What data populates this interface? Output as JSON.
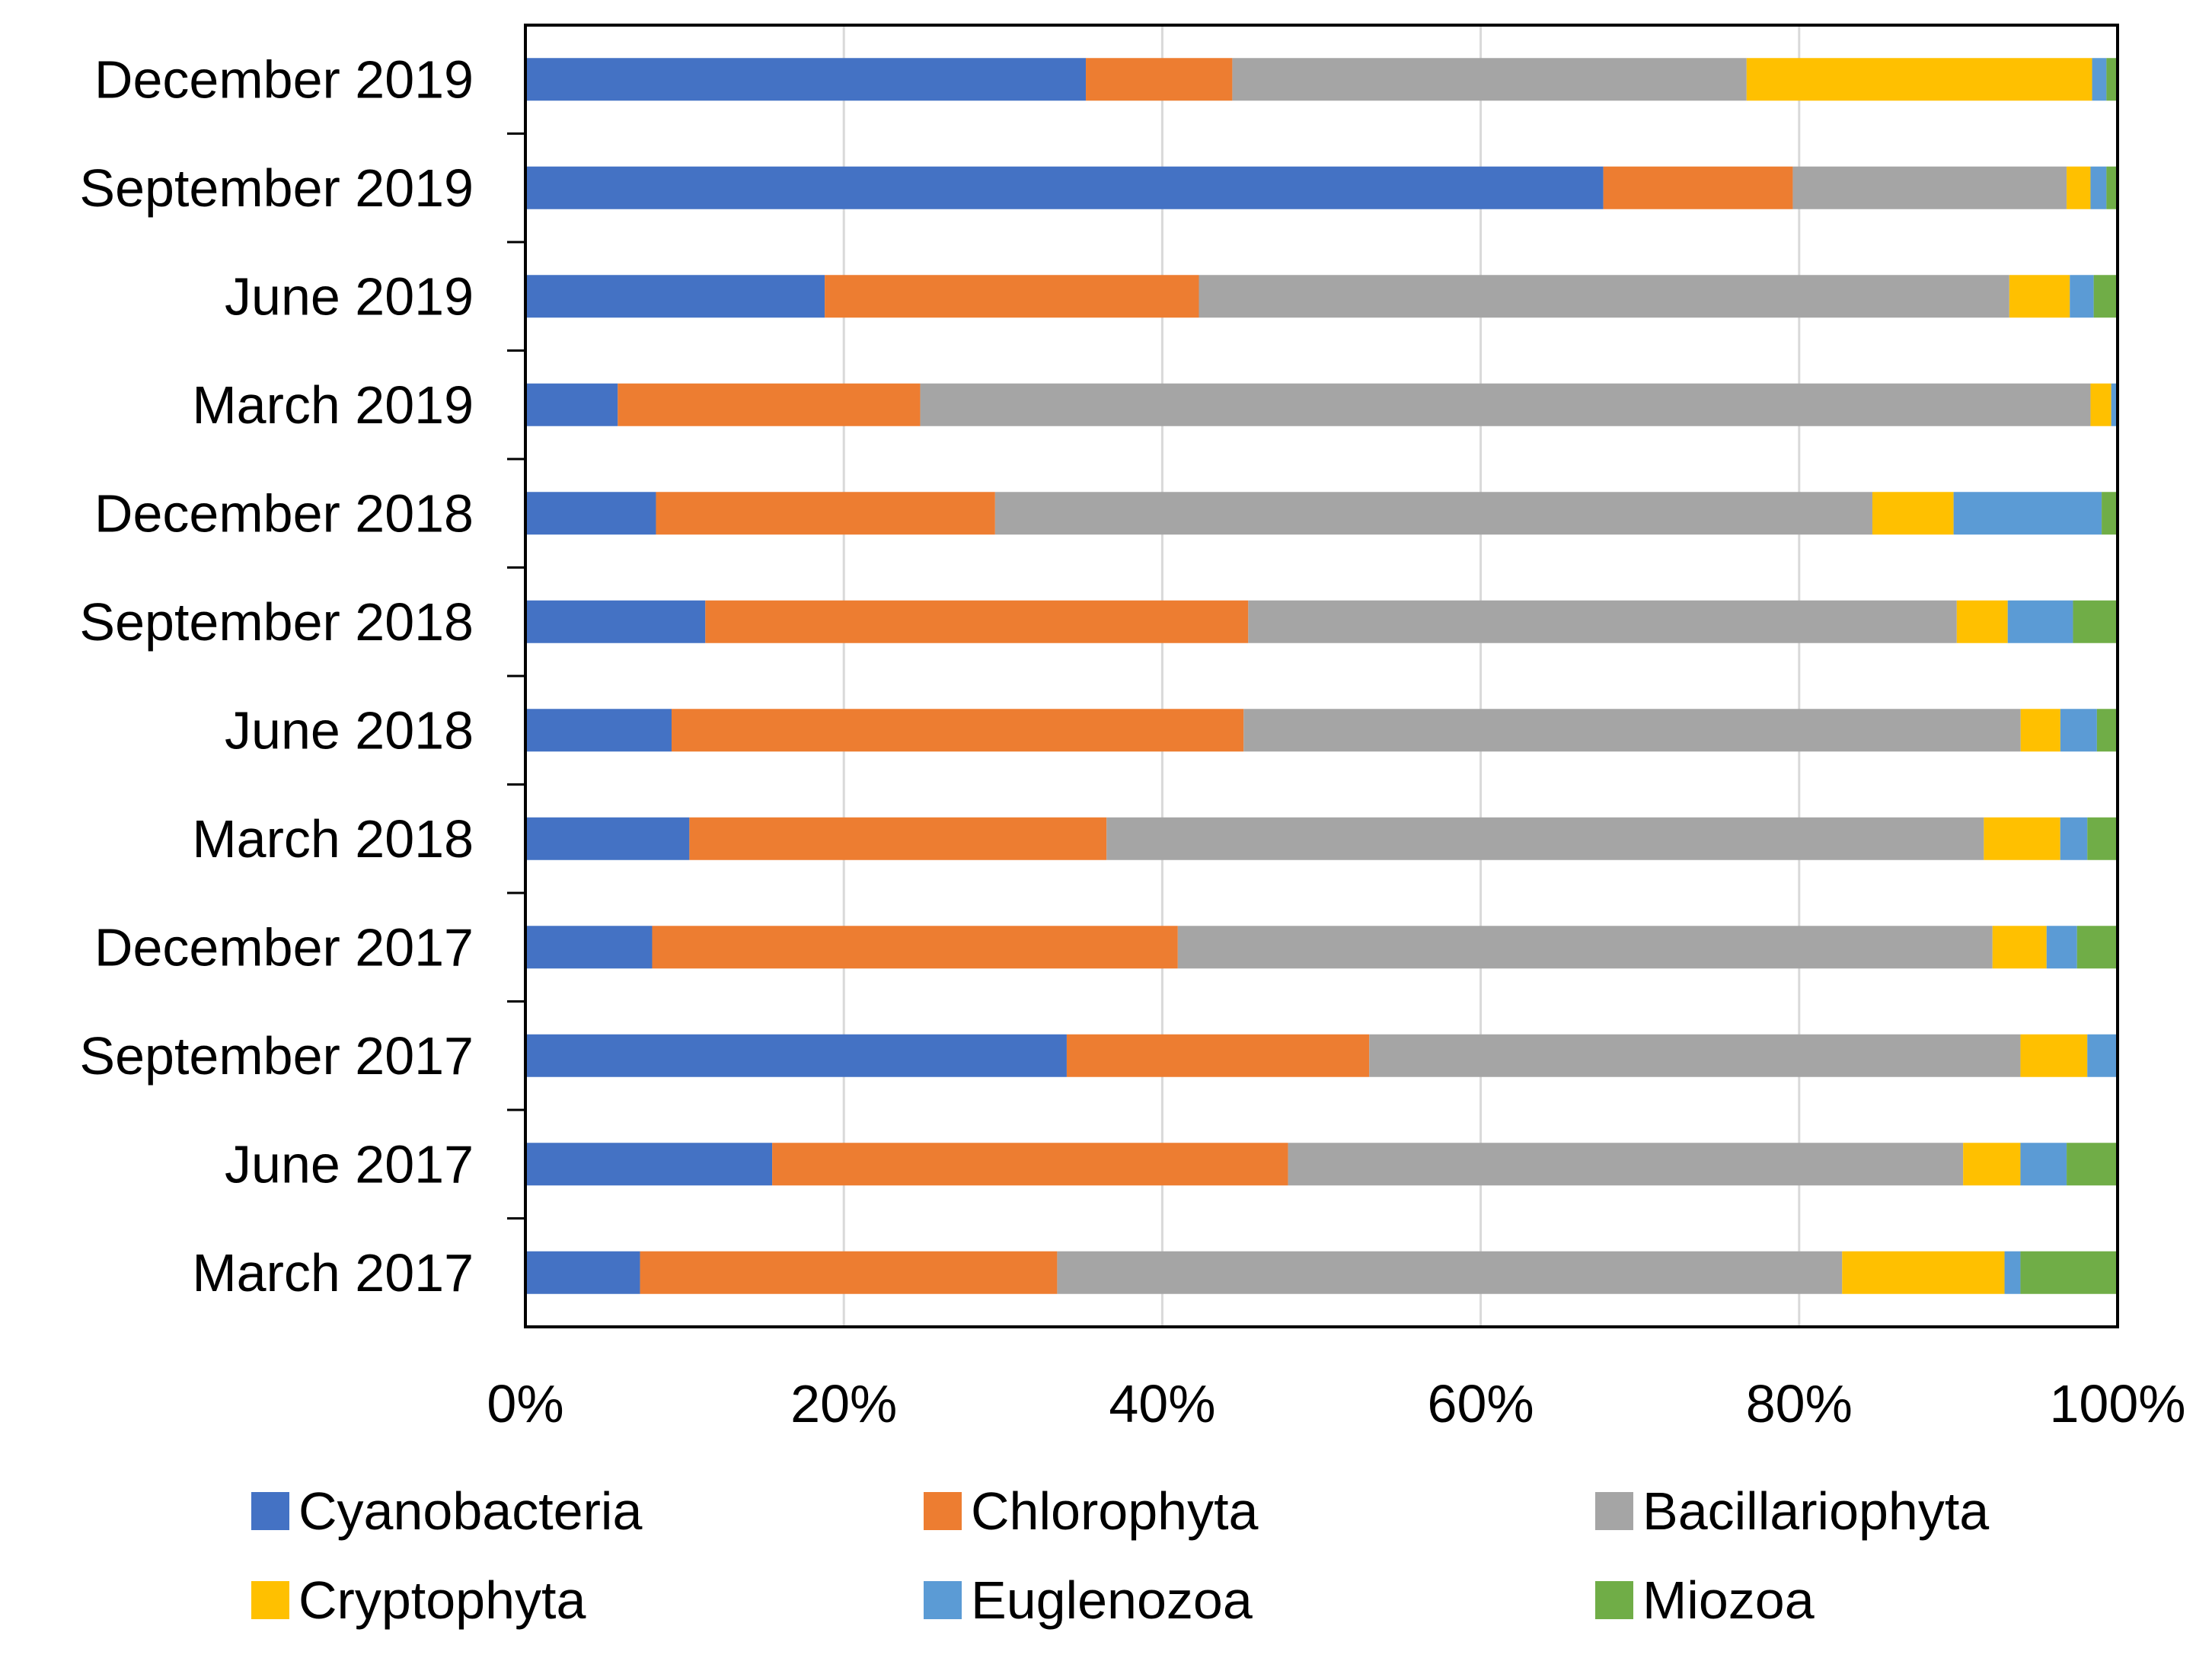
{
  "chart_data": {
    "type": "bar",
    "orientation": "horizontal",
    "stacked": "percent",
    "title": "",
    "xlabel": "",
    "ylabel": "",
    "xlim": [
      0,
      100
    ],
    "xticks": [
      "0%",
      "20%",
      "40%",
      "60%",
      "80%",
      "100%"
    ],
    "grid": "vertical",
    "legend_position": "bottom",
    "categories": [
      "March 2017",
      "June 2017",
      "September 2017",
      "December 2017",
      "March 2018",
      "June 2018",
      "September 2018",
      "December 2018",
      "March 2019",
      "June 2019",
      "September 2019",
      "December 2019"
    ],
    "series": [
      {
        "name": "Cyanobacteria",
        "color": "#4472C4",
        "values": [
          7.2,
          15.5,
          34.0,
          7.5,
          10.3,
          9.2,
          11.3,
          8.2,
          5.8,
          18.8,
          67.7,
          35.2
        ]
      },
      {
        "name": "Chlorophyta",
        "color": "#ED7D31",
        "values": [
          26.2,
          32.4,
          19.0,
          31.1,
          26.2,
          36.0,
          34.1,
          21.3,
          19.0,
          23.5,
          11.9,
          9.2
        ]
      },
      {
        "name": "Bacillariophyta",
        "color": "#A5A5A5",
        "values": [
          49.3,
          42.4,
          40.9,
          48.2,
          55.1,
          48.9,
          44.5,
          55.1,
          73.5,
          50.9,
          17.2,
          32.3
        ]
      },
      {
        "name": "Cryptophyta",
        "color": "#FFC000",
        "values": [
          10.2,
          3.6,
          4.2,
          3.2,
          4.8,
          2.5,
          3.2,
          5.1,
          1.3,
          3.8,
          1.5,
          21.7
        ]
      },
      {
        "name": "Euglenozoa",
        "color": "#5B9BD5",
        "values": [
          1.0,
          2.9,
          1.9,
          1.8,
          1.7,
          2.3,
          4.1,
          9.3,
          0.4,
          1.5,
          1.0,
          0.9
        ]
      },
      {
        "name": "Miozoa",
        "color": "#70AD47",
        "values": [
          6.1,
          3.2,
          0.0,
          2.4,
          1.9,
          1.3,
          2.8,
          1.0,
          0.0,
          1.5,
          0.7,
          0.7
        ]
      }
    ]
  },
  "colors": {
    "axis": "#000000",
    "grid": "#D9D9D9",
    "background": "#FFFFFF"
  }
}
